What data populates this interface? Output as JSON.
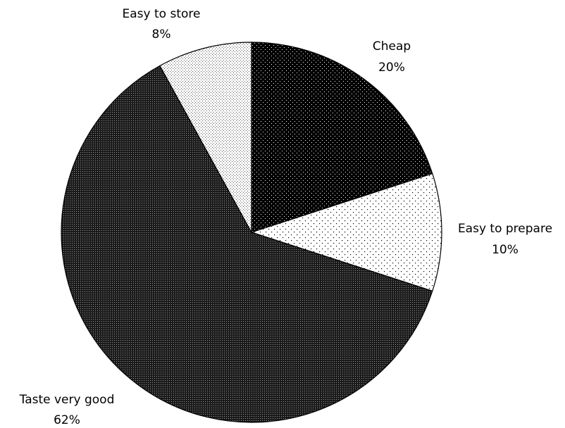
{
  "chart_data": {
    "type": "pie",
    "title": "",
    "start": "12 o'clock, clockwise",
    "slices": [
      {
        "label": "Cheap",
        "value": 20,
        "value_label": "20%",
        "pattern": "dark-dots"
      },
      {
        "label": "Easy to prepare",
        "value": 10,
        "value_label": "10%",
        "pattern": "sparse-dots"
      },
      {
        "label": "Taste very good",
        "value": 62,
        "value_label": "62%",
        "pattern": "dense-dots"
      },
      {
        "label": "Easy to store",
        "value": 8,
        "value_label": "8%",
        "pattern": "light-dots"
      }
    ]
  }
}
